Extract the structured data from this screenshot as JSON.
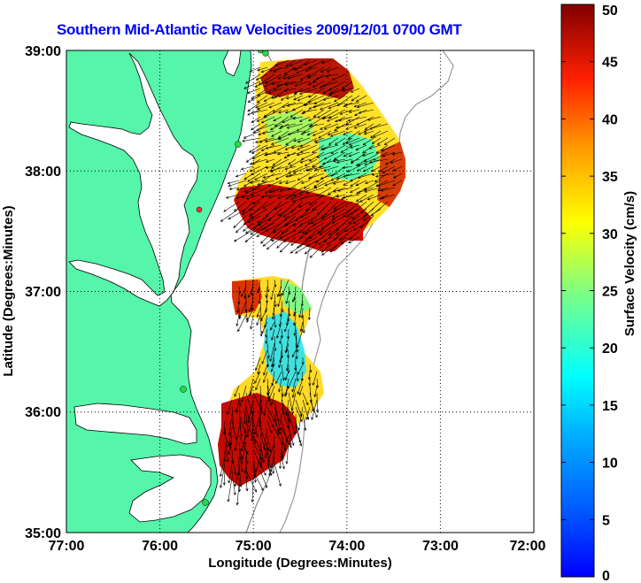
{
  "title": "Southern Mid-Atlantic Raw Velocities 2009/12/01 0700 GMT",
  "map": {
    "xlabel": "Longitude (Degrees:Minutes)",
    "ylabel": "Latitude (Degrees:Minutes)",
    "x_ticks": [
      "77:00",
      "76:00",
      "75:00",
      "74:00",
      "73:00",
      "72:00"
    ],
    "y_ticks": [
      "39:00",
      "38:00",
      "37:00",
      "36:00",
      "35:00"
    ],
    "lon_range": [
      -77,
      -72
    ],
    "lat_range": [
      35,
      39
    ],
    "grid": true,
    "land_color": "#55f5aa",
    "station_color": "#22dd44",
    "station_inactive_color": "#ee3333"
  },
  "colorbar": {
    "label": "Surface Velocity (cm/s)",
    "ticks": [
      "0",
      "5",
      "10",
      "15",
      "20",
      "25",
      "30",
      "35",
      "40",
      "45",
      "50"
    ],
    "range": [
      0,
      50
    ],
    "colormap": "jet"
  }
}
